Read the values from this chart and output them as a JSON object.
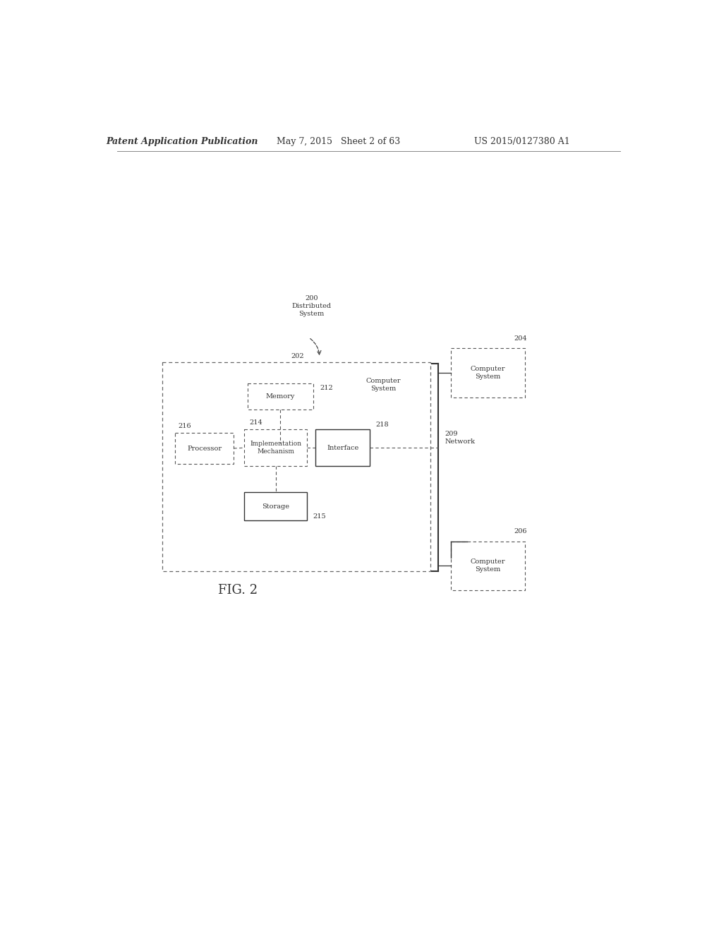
{
  "header_left": "Patent Application Publication",
  "header_mid": "May 7, 2015   Sheet 2 of 63",
  "header_right": "US 2015/0127380 A1",
  "fig_label": "FIG. 2",
  "title_200": "200\nDistributed\nSystem",
  "label_202": "202",
  "label_204": "204",
  "label_206": "206",
  "label_208": "206",
  "label_209": "209\nNetwork",
  "label_212": "212",
  "label_214": "214",
  "label_215": "215",
  "label_216": "216",
  "label_218": "218",
  "box_processor": "Processor",
  "box_memory": "Memory",
  "box_implementation": "Implementation\nMechanism",
  "box_interface": "Interface",
  "box_storage": "Storage",
  "box_cs_inner": "Computer\nSystem",
  "box_cs_204": "Computer\nSystem",
  "box_cs_206": "Computer\nSystem",
  "bg_color": "#ffffff",
  "line_color": "#444444",
  "dash_color": "#555555",
  "text_color": "#333333"
}
